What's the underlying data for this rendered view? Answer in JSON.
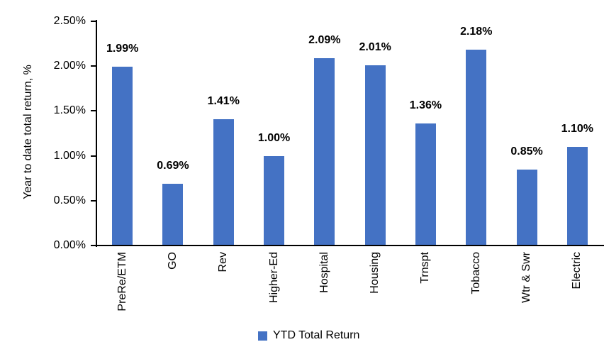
{
  "chart_data": {
    "type": "bar",
    "title": "",
    "xlabel": "",
    "ylabel": "Year to date total return, %",
    "categories": [
      "PreRe/ETM",
      "GO",
      "Rev",
      "Higher-Ed",
      "Hospital",
      "Housing",
      "Trnspt",
      "Tobacco",
      "Wtr & Swr",
      "Electric"
    ],
    "values": [
      1.99,
      0.69,
      1.41,
      1.0,
      2.09,
      2.01,
      1.36,
      2.18,
      0.85,
      1.1
    ],
    "value_labels": [
      "1.99%",
      "0.69%",
      "1.41%",
      "1.00%",
      "2.09%",
      "2.01%",
      "1.36%",
      "2.18%",
      "0.85%",
      "1.10%"
    ],
    "ylim": [
      0,
      2.5
    ],
    "ytick_labels": [
      "0.00%",
      "0.50%",
      "1.00%",
      "1.50%",
      "2.00%",
      "2.50%"
    ],
    "grid": false,
    "legend_position": "bottom",
    "legend": [
      {
        "label": "YTD Total Return",
        "color": "#4472C4"
      }
    ],
    "colors": {
      "bar": "#4472C4",
      "axis": "#000000",
      "text": "#000000",
      "background": "#FFFFFF"
    }
  }
}
